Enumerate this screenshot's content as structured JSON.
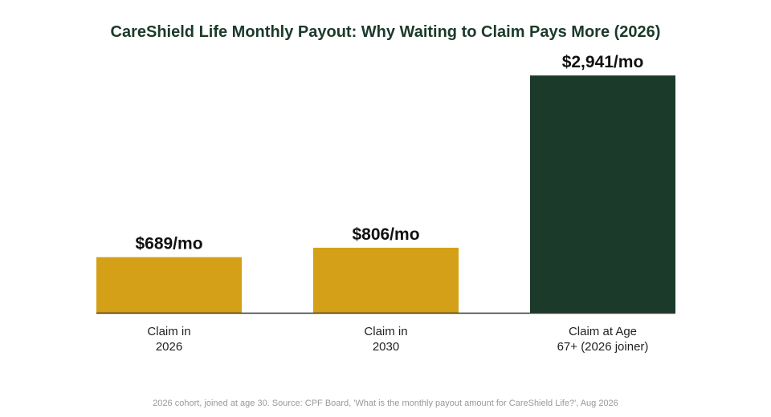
{
  "chart_data": {
    "type": "bar",
    "title": "CareShield Life Monthly Payout: Why Waiting to Claim Pays More (2026)",
    "categories": [
      [
        "Claim in",
        "2026"
      ],
      [
        "Claim in",
        "2030"
      ],
      [
        "Claim at Age",
        "67+ (2026 joiner)"
      ]
    ],
    "values": [
      689,
      806,
      2941
    ],
    "value_labels": [
      "$689/mo",
      "$806/mo",
      "$2,941/mo"
    ],
    "xlabel": "",
    "ylabel": "",
    "ylim": [
      0,
      3300
    ],
    "grid": false,
    "legend": "none",
    "source": "2026 cohort, joined at age 30. Source: CPF Board, 'What is the monthly payout amount for CareShield Life?', Aug 2026"
  },
  "colors": {
    "title": "#1b3a2a",
    "bars": [
      "#d4a017",
      "#d4a017",
      "#1b3a2a"
    ],
    "baseline": "#333333"
  }
}
